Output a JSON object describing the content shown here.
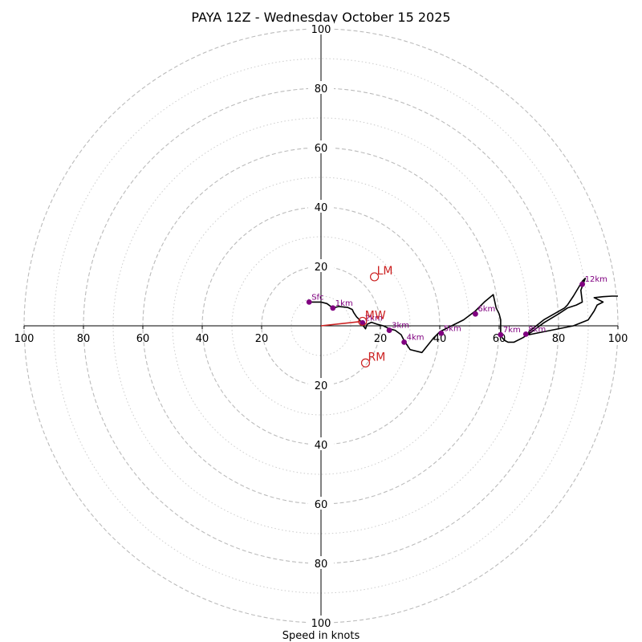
{
  "chart_data": {
    "type": "hodograph",
    "title": "PAYA 12Z - Wednesday October 15 2025",
    "xlabel": "Speed in knots",
    "xlim": [
      -100,
      100
    ],
    "ylim": [
      -100,
      100
    ],
    "ring_major_knots": [
      20,
      40,
      60,
      80,
      100
    ],
    "ring_minor_knots": [
      10,
      30,
      50,
      70,
      90
    ],
    "x_tick_labels": [
      "100",
      "80",
      "60",
      "40",
      "20",
      "20",
      "40",
      "60",
      "80",
      "100"
    ],
    "y_tick_labels": [
      "100",
      "80",
      "60",
      "40",
      "20",
      "20",
      "40",
      "60",
      "80",
      "100"
    ],
    "colors": {
      "trace": "#000000",
      "height_marker": "#800080",
      "motion": "#cc2222",
      "rings": "#bbbbbb"
    },
    "trace": [
      [
        -4,
        8
      ],
      [
        0,
        8
      ],
      [
        2,
        7.5
      ],
      [
        4,
        6
      ],
      [
        6,
        6.5
      ],
      [
        9,
        6.2
      ],
      [
        10.5,
        5.5
      ],
      [
        11,
        4.5
      ],
      [
        12,
        3
      ],
      [
        13,
        2
      ],
      [
        14,
        0.3
      ],
      [
        15,
        -1
      ],
      [
        15.5,
        0.5
      ],
      [
        17,
        1.2
      ],
      [
        19,
        0.5
      ],
      [
        21,
        0
      ],
      [
        23,
        -1
      ],
      [
        25,
        -1.5
      ],
      [
        27,
        -3
      ],
      [
        28,
        -5
      ],
      [
        30,
        -8
      ],
      [
        34,
        -9
      ],
      [
        38,
        -4
      ],
      [
        40,
        -2
      ],
      [
        44,
        0
      ],
      [
        48,
        2
      ],
      [
        52,
        5
      ],
      [
        55,
        8
      ],
      [
        58,
        10.5
      ],
      [
        59,
        6
      ],
      [
        60,
        4
      ],
      [
        60.5,
        2
      ],
      [
        60.5,
        -3
      ],
      [
        61,
        -4
      ],
      [
        62,
        -5
      ],
      [
        63,
        -5.5
      ],
      [
        65,
        -5.5
      ],
      [
        68,
        -4
      ],
      [
        71,
        -2
      ],
      [
        75,
        1
      ],
      [
        80,
        4
      ],
      [
        83,
        6
      ],
      [
        86,
        7
      ],
      [
        88,
        8
      ],
      [
        87.5,
        12
      ],
      [
        89,
        16
      ],
      [
        88,
        15
      ],
      [
        85,
        10
      ],
      [
        83,
        7
      ],
      [
        82,
        6
      ],
      [
        75,
        2
      ],
      [
        70,
        -2
      ],
      [
        70,
        -3
      ],
      [
        85,
        0
      ],
      [
        90,
        2
      ],
      [
        92,
        5
      ],
      [
        93,
        7
      ],
      [
        95,
        8
      ],
      [
        93,
        9
      ],
      [
        92,
        9.5
      ],
      [
        95,
        9.8
      ],
      [
        98,
        10
      ],
      [
        100,
        10
      ]
    ],
    "heights": [
      {
        "label": "Sfc",
        "u": -4,
        "v": 8
      },
      {
        "label": "1km",
        "u": 4,
        "v": 6
      },
      {
        "label": "2km",
        "u": 14,
        "v": 1
      },
      {
        "label": "3km",
        "u": 23,
        "v": -1.5
      },
      {
        "label": "4km",
        "u": 28,
        "v": -5.5
      },
      {
        "label": "5km",
        "u": 40.5,
        "v": -2.5
      },
      {
        "label": "6km",
        "u": 52,
        "v": 4
      },
      {
        "label": "7km",
        "u": 60.5,
        "v": -3
      },
      {
        "label": "8km",
        "u": 69,
        "v": -2.8
      },
      {
        "label": "12km",
        "u": 88,
        "v": 14
      }
    ],
    "storm_motions": [
      {
        "label": "LM",
        "u": 18,
        "v": 16.5
      },
      {
        "label": "MW",
        "u": 14,
        "v": 1.5
      },
      {
        "label": "RM",
        "u": 15,
        "v": -12.5
      }
    ],
    "mean_wind_vector": {
      "from": [
        0,
        0
      ],
      "to": [
        14,
        1.5
      ]
    }
  }
}
